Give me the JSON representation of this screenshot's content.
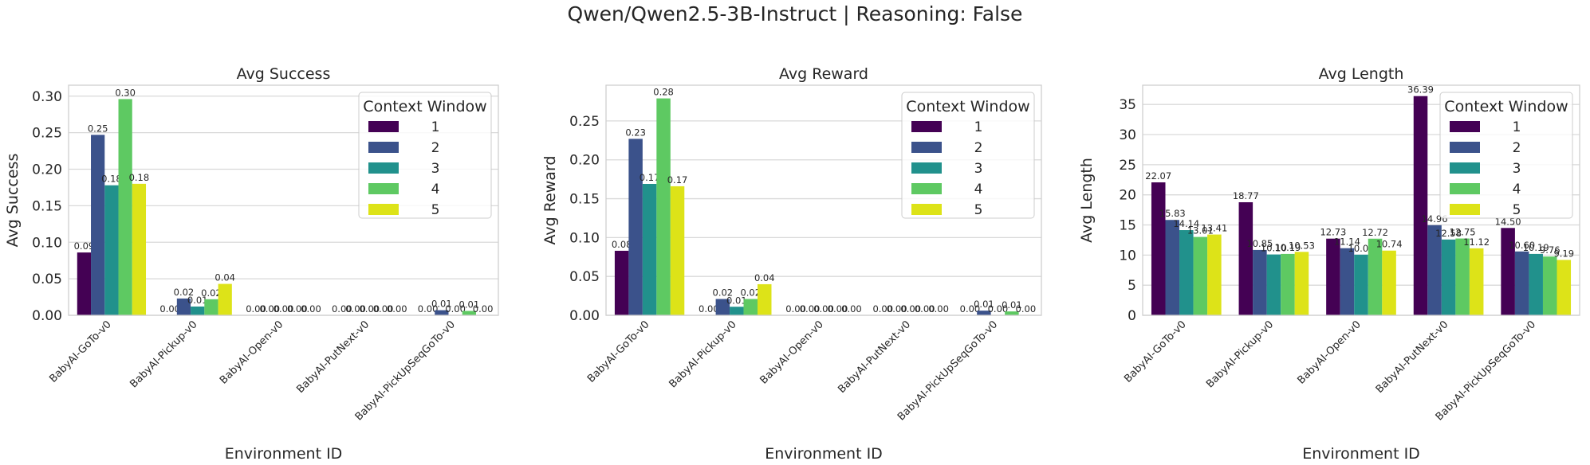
{
  "figure": {
    "title": "Qwen/Qwen2.5-3B-Instruct | Reasoning: False"
  },
  "legend_title": "Context Window",
  "palette": [
    "#440154",
    "#3b528b",
    "#21918c",
    "#5ec962",
    "#dde318"
  ],
  "chart_data": [
    {
      "type": "bar",
      "title": "Avg Success",
      "xlabel": "Environment ID",
      "ylabel": "Avg Success",
      "ylim": [
        0,
        0.315
      ],
      "yticks": [
        0.0,
        0.05,
        0.1,
        0.15,
        0.2,
        0.25,
        0.3
      ],
      "ytick_labels": [
        "0.00",
        "0.05",
        "0.10",
        "0.15",
        "0.20",
        "0.25",
        "0.30"
      ],
      "categories": [
        "BabyAI-GoTo-v0",
        "BabyAI-Pickup-v0",
        "BabyAI-Open-v0",
        "BabyAI-PutNext-v0",
        "BabyAI-PickUpSeqGoTo-v0"
      ],
      "legend": {
        "title": "Context Window",
        "placement": "top-right"
      },
      "grid": true,
      "series": [
        {
          "name": "1",
          "values": [
            0.086,
            0.0,
            0.0,
            0.0,
            0.0
          ],
          "labels": [
            "0.09",
            "0.00",
            "0.00",
            "0.00",
            "0.00"
          ]
        },
        {
          "name": "2",
          "values": [
            0.247,
            0.023,
            0.0,
            0.0,
            0.007
          ],
          "labels": [
            "0.25",
            "0.02",
            "0.00",
            "0.00",
            "0.01"
          ]
        },
        {
          "name": "3",
          "values": [
            0.178,
            0.012,
            0.0,
            0.0,
            0.0
          ],
          "labels": [
            "0.18",
            "0.01",
            "0.00",
            "0.00",
            "0.00"
          ]
        },
        {
          "name": "4",
          "values": [
            0.296,
            0.022,
            0.0,
            0.0,
            0.006
          ],
          "labels": [
            "0.30",
            "0.02",
            "0.00",
            "0.00",
            "0.01"
          ]
        },
        {
          "name": "5",
          "values": [
            0.18,
            0.043,
            0.0,
            0.0,
            0.0
          ],
          "labels": [
            "0.18",
            "0.04",
            "0.00",
            "0.00",
            "0.00"
          ]
        }
      ]
    },
    {
      "type": "bar",
      "title": "Avg Reward",
      "xlabel": "Environment ID",
      "ylabel": "Avg Reward",
      "ylim": [
        0,
        0.296
      ],
      "yticks": [
        0.0,
        0.05,
        0.1,
        0.15,
        0.2,
        0.25
      ],
      "ytick_labels": [
        "0.00",
        "0.05",
        "0.10",
        "0.15",
        "0.20",
        "0.25"
      ],
      "categories": [
        "BabyAI-GoTo-v0",
        "BabyAI-Pickup-v0",
        "BabyAI-Open-v0",
        "BabyAI-PutNext-v0",
        "BabyAI-PickUpSeqGoTo-v0"
      ],
      "legend": {
        "title": "Context Window",
        "placement": "top-right"
      },
      "grid": true,
      "series": [
        {
          "name": "1",
          "values": [
            0.083,
            0.0,
            0.0,
            0.0,
            0.0
          ],
          "labels": [
            "0.08",
            "0.00",
            "0.00",
            "0.00",
            "0.00"
          ]
        },
        {
          "name": "2",
          "values": [
            0.227,
            0.021,
            0.0,
            0.0,
            0.006
          ],
          "labels": [
            "0.23",
            "0.02",
            "0.00",
            "0.00",
            "0.01"
          ]
        },
        {
          "name": "3",
          "values": [
            0.169,
            0.011,
            0.0,
            0.0,
            0.0
          ],
          "labels": [
            "0.17",
            "0.01",
            "0.00",
            "0.00",
            "0.00"
          ]
        },
        {
          "name": "4",
          "values": [
            0.279,
            0.021,
            0.0,
            0.0,
            0.005
          ],
          "labels": [
            "0.28",
            "0.02",
            "0.00",
            "0.00",
            "0.01"
          ]
        },
        {
          "name": "5",
          "values": [
            0.166,
            0.04,
            0.0,
            0.0,
            0.0
          ],
          "labels": [
            "0.17",
            "0.04",
            "0.00",
            "0.00",
            "0.00"
          ]
        }
      ]
    },
    {
      "type": "bar",
      "title": "Avg Length",
      "xlabel": "Environment ID",
      "ylabel": "Avg Length",
      "ylim": [
        0,
        38.2
      ],
      "yticks": [
        0,
        5,
        10,
        15,
        20,
        25,
        30,
        35
      ],
      "ytick_labels": [
        "0",
        "5",
        "10",
        "15",
        "20",
        "25",
        "30",
        "35"
      ],
      "categories": [
        "BabyAI-GoTo-v0",
        "BabyAI-Pickup-v0",
        "BabyAI-Open-v0",
        "BabyAI-PutNext-v0",
        "BabyAI-PickUpSeqGoTo-v0"
      ],
      "legend": {
        "title": "Context Window",
        "placement": "top-right"
      },
      "grid": true,
      "series": [
        {
          "name": "1",
          "values": [
            22.07,
            18.77,
            12.73,
            36.39,
            14.5
          ],
          "labels": [
            "22.07",
            "18.77",
            "12.73",
            "36.39",
            "14.50"
          ]
        },
        {
          "name": "2",
          "values": [
            15.83,
            10.85,
            11.14,
            14.96,
            10.6
          ],
          "labels": [
            "15.83",
            "10.85",
            "11.14",
            "14.96",
            "10.60"
          ]
        },
        {
          "name": "3",
          "values": [
            14.14,
            10.1,
            10.07,
            12.58,
            10.19
          ],
          "labels": [
            "14.14",
            "10.10",
            "10.07",
            "12.58",
            "10.19"
          ]
        },
        {
          "name": "4",
          "values": [
            13.01,
            10.19,
            12.72,
            12.75,
            9.76
          ],
          "labels": [
            "13.01",
            "10.19",
            "12.72",
            "12.75",
            "9.76"
          ]
        },
        {
          "name": "5",
          "values": [
            13.41,
            10.53,
            10.74,
            11.12,
            9.19
          ],
          "labels": [
            "13.41",
            "10.53",
            "10.74",
            "11.12",
            "9.19"
          ]
        }
      ]
    }
  ]
}
